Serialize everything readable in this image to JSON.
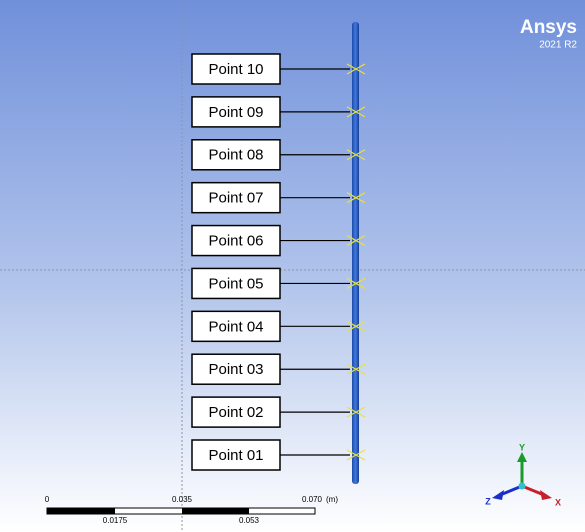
{
  "brand": {
    "name": "Ansys",
    "version": "2021 R2"
  },
  "probes": [
    "Point 10",
    "Point 09",
    "Point 08",
    "Point 07",
    "Point 06",
    "Point 05",
    "Point 04",
    "Point 03",
    "Point 02",
    "Point 01"
  ],
  "scale_bar": {
    "top_labels": [
      "0",
      "0.035",
      "0.070"
    ],
    "unit": "(m)",
    "bottom_labels": [
      "0.0175",
      "0.053"
    ]
  },
  "triad": {
    "y": "Y",
    "z": "Z",
    "x": "X"
  }
}
